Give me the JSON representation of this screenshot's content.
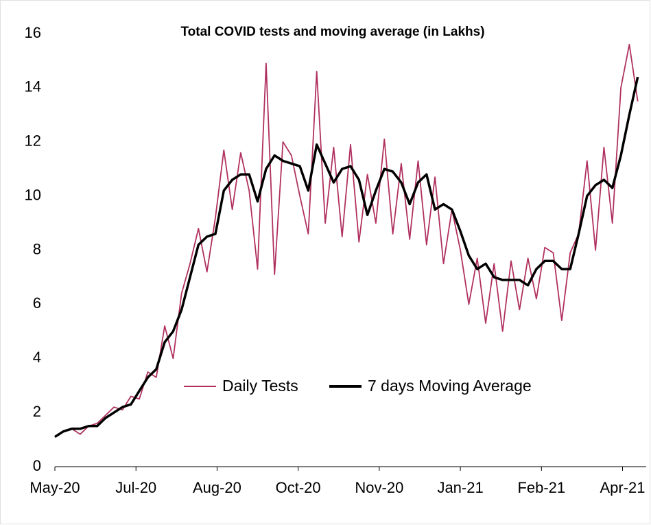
{
  "chart_data": {
    "type": "line",
    "title": "Total COVID tests and moving average (in Lakhs)",
    "x": [
      0,
      5,
      10,
      15,
      20,
      25,
      30,
      35,
      40,
      45,
      50,
      55,
      60,
      65,
      70,
      75,
      80,
      85,
      90,
      95,
      100,
      105,
      110,
      115,
      120,
      125,
      130,
      135,
      140,
      145,
      150,
      155,
      160,
      165,
      170,
      175,
      180,
      185,
      190,
      195,
      200,
      205,
      210,
      215,
      220,
      225,
      230,
      235,
      240,
      245,
      250,
      255,
      260,
      265,
      270,
      275,
      280,
      285,
      290,
      295,
      300,
      305,
      310,
      315,
      320,
      325,
      330,
      335,
      340,
      345
    ],
    "series": [
      {
        "name": "Daily Tests",
        "color": "#b0305f",
        "values": [
          1.1,
          1.3,
          1.4,
          1.2,
          1.5,
          1.6,
          1.9,
          2.2,
          2.1,
          2.6,
          2.5,
          3.5,
          3.3,
          5.2,
          4.0,
          6.4,
          7.5,
          8.8,
          7.2,
          9.2,
          11.7,
          9.5,
          11.6,
          10.2,
          7.3,
          14.9,
          7.1,
          12.0,
          11.5,
          10.0,
          8.6,
          14.6,
          9.0,
          11.8,
          8.5,
          11.9,
          8.3,
          10.8,
          9.0,
          12.1,
          8.6,
          11.2,
          8.4,
          11.3,
          8.2,
          10.7,
          7.5,
          9.5,
          8.0,
          6.0,
          7.7,
          5.3,
          7.5,
          5.0,
          7.6,
          5.8,
          7.7,
          6.2,
          8.1,
          7.9,
          5.4,
          7.9,
          8.6,
          11.3,
          8.0,
          11.8,
          9.0,
          14.0,
          15.6,
          13.5
        ]
      },
      {
        "name": "7 days Moving Average",
        "color": "#000000",
        "values": [
          1.1,
          1.3,
          1.4,
          1.4,
          1.5,
          1.5,
          1.8,
          2.0,
          2.2,
          2.3,
          2.8,
          3.3,
          3.6,
          4.6,
          5.0,
          5.8,
          7.0,
          8.2,
          8.5,
          8.6,
          10.2,
          10.6,
          10.8,
          10.8,
          9.8,
          11.0,
          11.5,
          11.3,
          11.2,
          11.1,
          10.2,
          11.9,
          11.2,
          10.5,
          11.0,
          11.1,
          10.6,
          9.3,
          10.2,
          11.0,
          10.9,
          10.5,
          9.7,
          10.5,
          10.8,
          9.5,
          9.7,
          9.5,
          8.7,
          7.8,
          7.3,
          7.5,
          7.0,
          6.9,
          6.9,
          6.9,
          6.7,
          7.3,
          7.6,
          7.6,
          7.3,
          7.3,
          8.6,
          10.0,
          10.4,
          10.6,
          10.3,
          11.5,
          13.0,
          14.4
        ]
      }
    ],
    "xlim": [
      0,
      350
    ],
    "xticks": [
      {
        "value": 0,
        "label": "May-20"
      },
      {
        "value": 48,
        "label": "Jul-20"
      },
      {
        "value": 96,
        "label": "Aug-20"
      },
      {
        "value": 144,
        "label": "Oct-20"
      },
      {
        "value": 192,
        "label": "Nov-20"
      },
      {
        "value": 240,
        "label": "Jan-21"
      },
      {
        "value": 288,
        "label": "Feb-21"
      },
      {
        "value": 336,
        "label": "Apr-21"
      }
    ],
    "ylim": [
      0,
      16
    ],
    "yticks": [
      0,
      2,
      4,
      6,
      8,
      10,
      12,
      14,
      16
    ],
    "grid": false
  }
}
